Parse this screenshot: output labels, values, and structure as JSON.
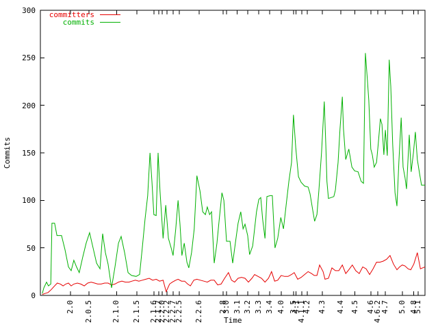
{
  "colors": {
    "background": "#ffffff",
    "axis": "#000000",
    "commits": "#00b000",
    "committers": "#e60000"
  },
  "legend": [
    {
      "label": "committers",
      "color": "#e60000"
    },
    {
      "label": "commits",
      "color": "#00b000"
    }
  ],
  "chart_data": {
    "type": "line",
    "title": "",
    "xlabel": "Time",
    "ylabel": "Commits",
    "ylim": [
      0,
      300
    ],
    "y_ticks": [
      0,
      50,
      100,
      150,
      200,
      250,
      300
    ],
    "grid": false,
    "legend_position": "top-left-inside",
    "x_tick_labels": [
      {
        "label": "2.0",
        "pos": 0.078
      },
      {
        "label": "2.0.5",
        "pos": 0.126
      },
      {
        "label": "2.1.0",
        "pos": 0.198
      },
      {
        "label": "2.1.5",
        "pos": 0.251
      },
      {
        "label": "2.1.6",
        "pos": 0.295
      },
      {
        "label": "2.1.7",
        "pos": 0.308
      },
      {
        "label": "2.2.0",
        "pos": 0.317
      },
      {
        "label": "2.2.2",
        "pos": 0.329
      },
      {
        "label": "2.2.7",
        "pos": 0.345
      },
      {
        "label": "2.2.5",
        "pos": 0.361
      },
      {
        "label": "2.2.6",
        "pos": 0.413
      },
      {
        "label": "2.8",
        "pos": 0.475
      },
      {
        "label": "3.0",
        "pos": 0.484
      },
      {
        "label": "3.1",
        "pos": 0.512
      },
      {
        "label": "3.2",
        "pos": 0.539
      },
      {
        "label": "3.3",
        "pos": 0.568
      },
      {
        "label": "3.4",
        "pos": 0.596
      },
      {
        "label": "4.0",
        "pos": 0.626
      },
      {
        "label": "3.5",
        "pos": 0.658
      },
      {
        "label": "4.1",
        "pos": 0.665
      },
      {
        "label": "4.1.1",
        "pos": 0.68
      },
      {
        "label": "4.2",
        "pos": 0.694
      },
      {
        "label": "4.3",
        "pos": 0.733
      },
      {
        "label": "4.4",
        "pos": 0.781
      },
      {
        "label": "4.5",
        "pos": 0.818
      },
      {
        "label": "4.6",
        "pos": 0.859
      },
      {
        "label": "4.6.2",
        "pos": 0.877
      },
      {
        "label": "4.7",
        "pos": 0.897
      },
      {
        "label": "5.0",
        "pos": 0.941
      },
      {
        "label": "4.8",
        "pos": 0.971
      },
      {
        "label": "5.1",
        "pos": 0.982
      }
    ],
    "series": [
      {
        "name": "committers",
        "color": "#e60000",
        "points": [
          [
            0.005,
            1
          ],
          [
            0.012,
            2
          ],
          [
            0.02,
            3
          ],
          [
            0.028,
            6
          ],
          [
            0.037,
            10
          ],
          [
            0.044,
            13
          ],
          [
            0.052,
            12
          ],
          [
            0.059,
            10
          ],
          [
            0.066,
            12
          ],
          [
            0.073,
            13
          ],
          [
            0.08,
            10
          ],
          [
            0.087,
            12
          ],
          [
            0.096,
            13
          ],
          [
            0.105,
            12
          ],
          [
            0.114,
            10
          ],
          [
            0.123,
            13
          ],
          [
            0.132,
            14
          ],
          [
            0.141,
            13
          ],
          [
            0.149,
            12
          ],
          [
            0.158,
            12
          ],
          [
            0.167,
            13
          ],
          [
            0.176,
            13
          ],
          [
            0.185,
            11
          ],
          [
            0.194,
            12
          ],
          [
            0.203,
            14
          ],
          [
            0.212,
            15
          ],
          [
            0.221,
            14
          ],
          [
            0.23,
            14
          ],
          [
            0.238,
            15
          ],
          [
            0.247,
            16
          ],
          [
            0.256,
            15
          ],
          [
            0.265,
            16
          ],
          [
            0.274,
            17
          ],
          [
            0.283,
            18
          ],
          [
            0.292,
            16
          ],
          [
            0.301,
            17
          ],
          [
            0.31,
            15
          ],
          [
            0.319,
            16
          ],
          [
            0.327,
            4
          ],
          [
            0.336,
            12
          ],
          [
            0.343,
            14
          ],
          [
            0.352,
            16
          ],
          [
            0.358,
            17
          ],
          [
            0.367,
            15
          ],
          [
            0.375,
            15
          ],
          [
            0.383,
            12
          ],
          [
            0.39,
            10
          ],
          [
            0.399,
            16
          ],
          [
            0.407,
            17
          ],
          [
            0.416,
            16
          ],
          [
            0.425,
            15
          ],
          [
            0.434,
            14
          ],
          [
            0.443,
            16
          ],
          [
            0.452,
            16
          ],
          [
            0.461,
            11
          ],
          [
            0.47,
            12
          ],
          [
            0.479,
            18
          ],
          [
            0.489,
            24
          ],
          [
            0.497,
            16
          ],
          [
            0.505,
            14
          ],
          [
            0.514,
            18
          ],
          [
            0.523,
            19
          ],
          [
            0.532,
            18
          ],
          [
            0.541,
            14
          ],
          [
            0.55,
            18
          ],
          [
            0.557,
            22
          ],
          [
            0.566,
            20
          ],
          [
            0.575,
            18
          ],
          [
            0.584,
            14
          ],
          [
            0.593,
            18
          ],
          [
            0.601,
            25
          ],
          [
            0.609,
            15
          ],
          [
            0.617,
            16
          ],
          [
            0.626,
            21
          ],
          [
            0.635,
            20
          ],
          [
            0.644,
            20
          ],
          [
            0.653,
            22
          ],
          [
            0.66,
            24
          ],
          [
            0.669,
            17
          ],
          [
            0.678,
            19
          ],
          [
            0.687,
            22
          ],
          [
            0.696,
            25
          ],
          [
            0.705,
            23
          ],
          [
            0.712,
            21
          ],
          [
            0.719,
            21
          ],
          [
            0.726,
            32
          ],
          [
            0.735,
            25
          ],
          [
            0.74,
            17
          ],
          [
            0.749,
            18
          ],
          [
            0.758,
            29
          ],
          [
            0.767,
            26
          ],
          [
            0.776,
            26
          ],
          [
            0.785,
            32
          ],
          [
            0.794,
            23
          ],
          [
            0.802,
            27
          ],
          [
            0.811,
            32
          ],
          [
            0.82,
            26
          ],
          [
            0.829,
            23
          ],
          [
            0.838,
            30
          ],
          [
            0.847,
            28
          ],
          [
            0.856,
            22
          ],
          [
            0.865,
            28
          ],
          [
            0.874,
            35
          ],
          [
            0.883,
            35
          ],
          [
            0.891,
            36
          ],
          [
            0.9,
            38
          ],
          [
            0.909,
            42
          ],
          [
            0.918,
            33
          ],
          [
            0.927,
            27
          ],
          [
            0.934,
            30
          ],
          [
            0.941,
            32
          ],
          [
            0.948,
            31
          ],
          [
            0.956,
            28
          ],
          [
            0.963,
            27
          ],
          [
            0.971,
            33
          ],
          [
            0.98,
            45
          ],
          [
            0.988,
            28
          ],
          [
            0.994,
            29
          ],
          [
            1.0,
            30
          ]
        ]
      },
      {
        "name": "commits",
        "color": "#00b000",
        "points": [
          [
            0.005,
            2
          ],
          [
            0.009,
            8
          ],
          [
            0.016,
            14
          ],
          [
            0.021,
            10
          ],
          [
            0.027,
            12
          ],
          [
            0.03,
            76
          ],
          [
            0.037,
            76
          ],
          [
            0.043,
            63
          ],
          [
            0.055,
            63
          ],
          [
            0.064,
            48
          ],
          [
            0.073,
            30
          ],
          [
            0.08,
            26
          ],
          [
            0.087,
            37
          ],
          [
            0.094,
            30
          ],
          [
            0.101,
            24
          ],
          [
            0.11,
            40
          ],
          [
            0.119,
            55
          ],
          [
            0.128,
            66
          ],
          [
            0.137,
            50
          ],
          [
            0.146,
            34
          ],
          [
            0.155,
            28
          ],
          [
            0.162,
            65
          ],
          [
            0.169,
            45
          ],
          [
            0.176,
            33
          ],
          [
            0.185,
            8
          ],
          [
            0.194,
            30
          ],
          [
            0.203,
            55
          ],
          [
            0.21,
            62
          ],
          [
            0.219,
            45
          ],
          [
            0.228,
            24
          ],
          [
            0.237,
            21
          ],
          [
            0.249,
            20
          ],
          [
            0.258,
            22
          ],
          [
            0.265,
            50
          ],
          [
            0.272,
            80
          ],
          [
            0.279,
            105
          ],
          [
            0.285,
            150
          ],
          [
            0.29,
            120
          ],
          [
            0.295,
            85
          ],
          [
            0.301,
            84
          ],
          [
            0.306,
            150
          ],
          [
            0.311,
            110
          ],
          [
            0.319,
            60
          ],
          [
            0.326,
            95
          ],
          [
            0.333,
            60
          ],
          [
            0.34,
            50
          ],
          [
            0.345,
            42
          ],
          [
            0.352,
            70
          ],
          [
            0.358,
            100
          ],
          [
            0.363,
            75
          ],
          [
            0.368,
            42
          ],
          [
            0.374,
            55
          ],
          [
            0.381,
            35
          ],
          [
            0.386,
            29
          ],
          [
            0.393,
            45
          ],
          [
            0.4,
            70
          ],
          [
            0.407,
            126
          ],
          [
            0.415,
            110
          ],
          [
            0.422,
            88
          ],
          [
            0.429,
            85
          ],
          [
            0.434,
            93
          ],
          [
            0.44,
            85
          ],
          [
            0.445,
            88
          ],
          [
            0.452,
            34
          ],
          [
            0.459,
            55
          ],
          [
            0.464,
            76
          ],
          [
            0.472,
            108
          ],
          [
            0.477,
            100
          ],
          [
            0.484,
            57
          ],
          [
            0.493,
            57
          ],
          [
            0.5,
            34
          ],
          [
            0.507,
            55
          ],
          [
            0.514,
            76
          ],
          [
            0.521,
            88
          ],
          [
            0.527,
            70
          ],
          [
            0.532,
            75
          ],
          [
            0.539,
            63
          ],
          [
            0.544,
            43
          ],
          [
            0.552,
            52
          ],
          [
            0.557,
            70
          ],
          [
            0.562,
            88
          ],
          [
            0.568,
            101
          ],
          [
            0.573,
            103
          ],
          [
            0.578,
            80
          ],
          [
            0.584,
            60
          ],
          [
            0.589,
            104
          ],
          [
            0.598,
            105
          ],
          [
            0.603,
            105
          ],
          [
            0.61,
            50
          ],
          [
            0.617,
            60
          ],
          [
            0.625,
            82
          ],
          [
            0.632,
            70
          ],
          [
            0.639,
            95
          ],
          [
            0.646,
            120
          ],
          [
            0.653,
            140
          ],
          [
            0.658,
            190
          ],
          [
            0.664,
            155
          ],
          [
            0.671,
            125
          ],
          [
            0.678,
            119
          ],
          [
            0.687,
            115
          ],
          [
            0.696,
            114
          ],
          [
            0.701,
            107
          ],
          [
            0.708,
            90
          ],
          [
            0.713,
            78
          ],
          [
            0.719,
            85
          ],
          [
            0.724,
            110
          ],
          [
            0.731,
            150
          ],
          [
            0.738,
            204
          ],
          [
            0.742,
            160
          ],
          [
            0.745,
            120
          ],
          [
            0.749,
            102
          ],
          [
            0.756,
            103
          ],
          [
            0.763,
            104
          ],
          [
            0.767,
            111
          ],
          [
            0.774,
            140
          ],
          [
            0.779,
            175
          ],
          [
            0.785,
            209
          ],
          [
            0.788,
            175
          ],
          [
            0.794,
            143
          ],
          [
            0.799,
            150
          ],
          [
            0.802,
            154
          ],
          [
            0.81,
            135
          ],
          [
            0.817,
            131
          ],
          [
            0.826,
            130
          ],
          [
            0.834,
            120
          ],
          [
            0.84,
            118
          ],
          [
            0.845,
            255
          ],
          [
            0.85,
            228
          ],
          [
            0.854,
            205
          ],
          [
            0.859,
            154
          ],
          [
            0.863,
            148
          ],
          [
            0.868,
            135
          ],
          [
            0.874,
            140
          ],
          [
            0.879,
            162
          ],
          [
            0.884,
            186
          ],
          [
            0.888,
            180
          ],
          [
            0.893,
            148
          ],
          [
            0.897,
            174
          ],
          [
            0.902,
            147
          ],
          [
            0.907,
            248
          ],
          [
            0.911,
            220
          ],
          [
            0.916,
            159
          ],
          [
            0.922,
            108
          ],
          [
            0.927,
            94
          ],
          [
            0.932,
            140
          ],
          [
            0.938,
            187
          ],
          [
            0.943,
            135
          ],
          [
            0.948,
            124
          ],
          [
            0.952,
            112
          ],
          [
            0.959,
            169
          ],
          [
            0.964,
            130
          ],
          [
            0.97,
            150
          ],
          [
            0.975,
            172
          ],
          [
            0.98,
            143
          ],
          [
            0.986,
            128
          ],
          [
            0.991,
            116
          ],
          [
            1.0,
            116
          ]
        ]
      }
    ]
  }
}
